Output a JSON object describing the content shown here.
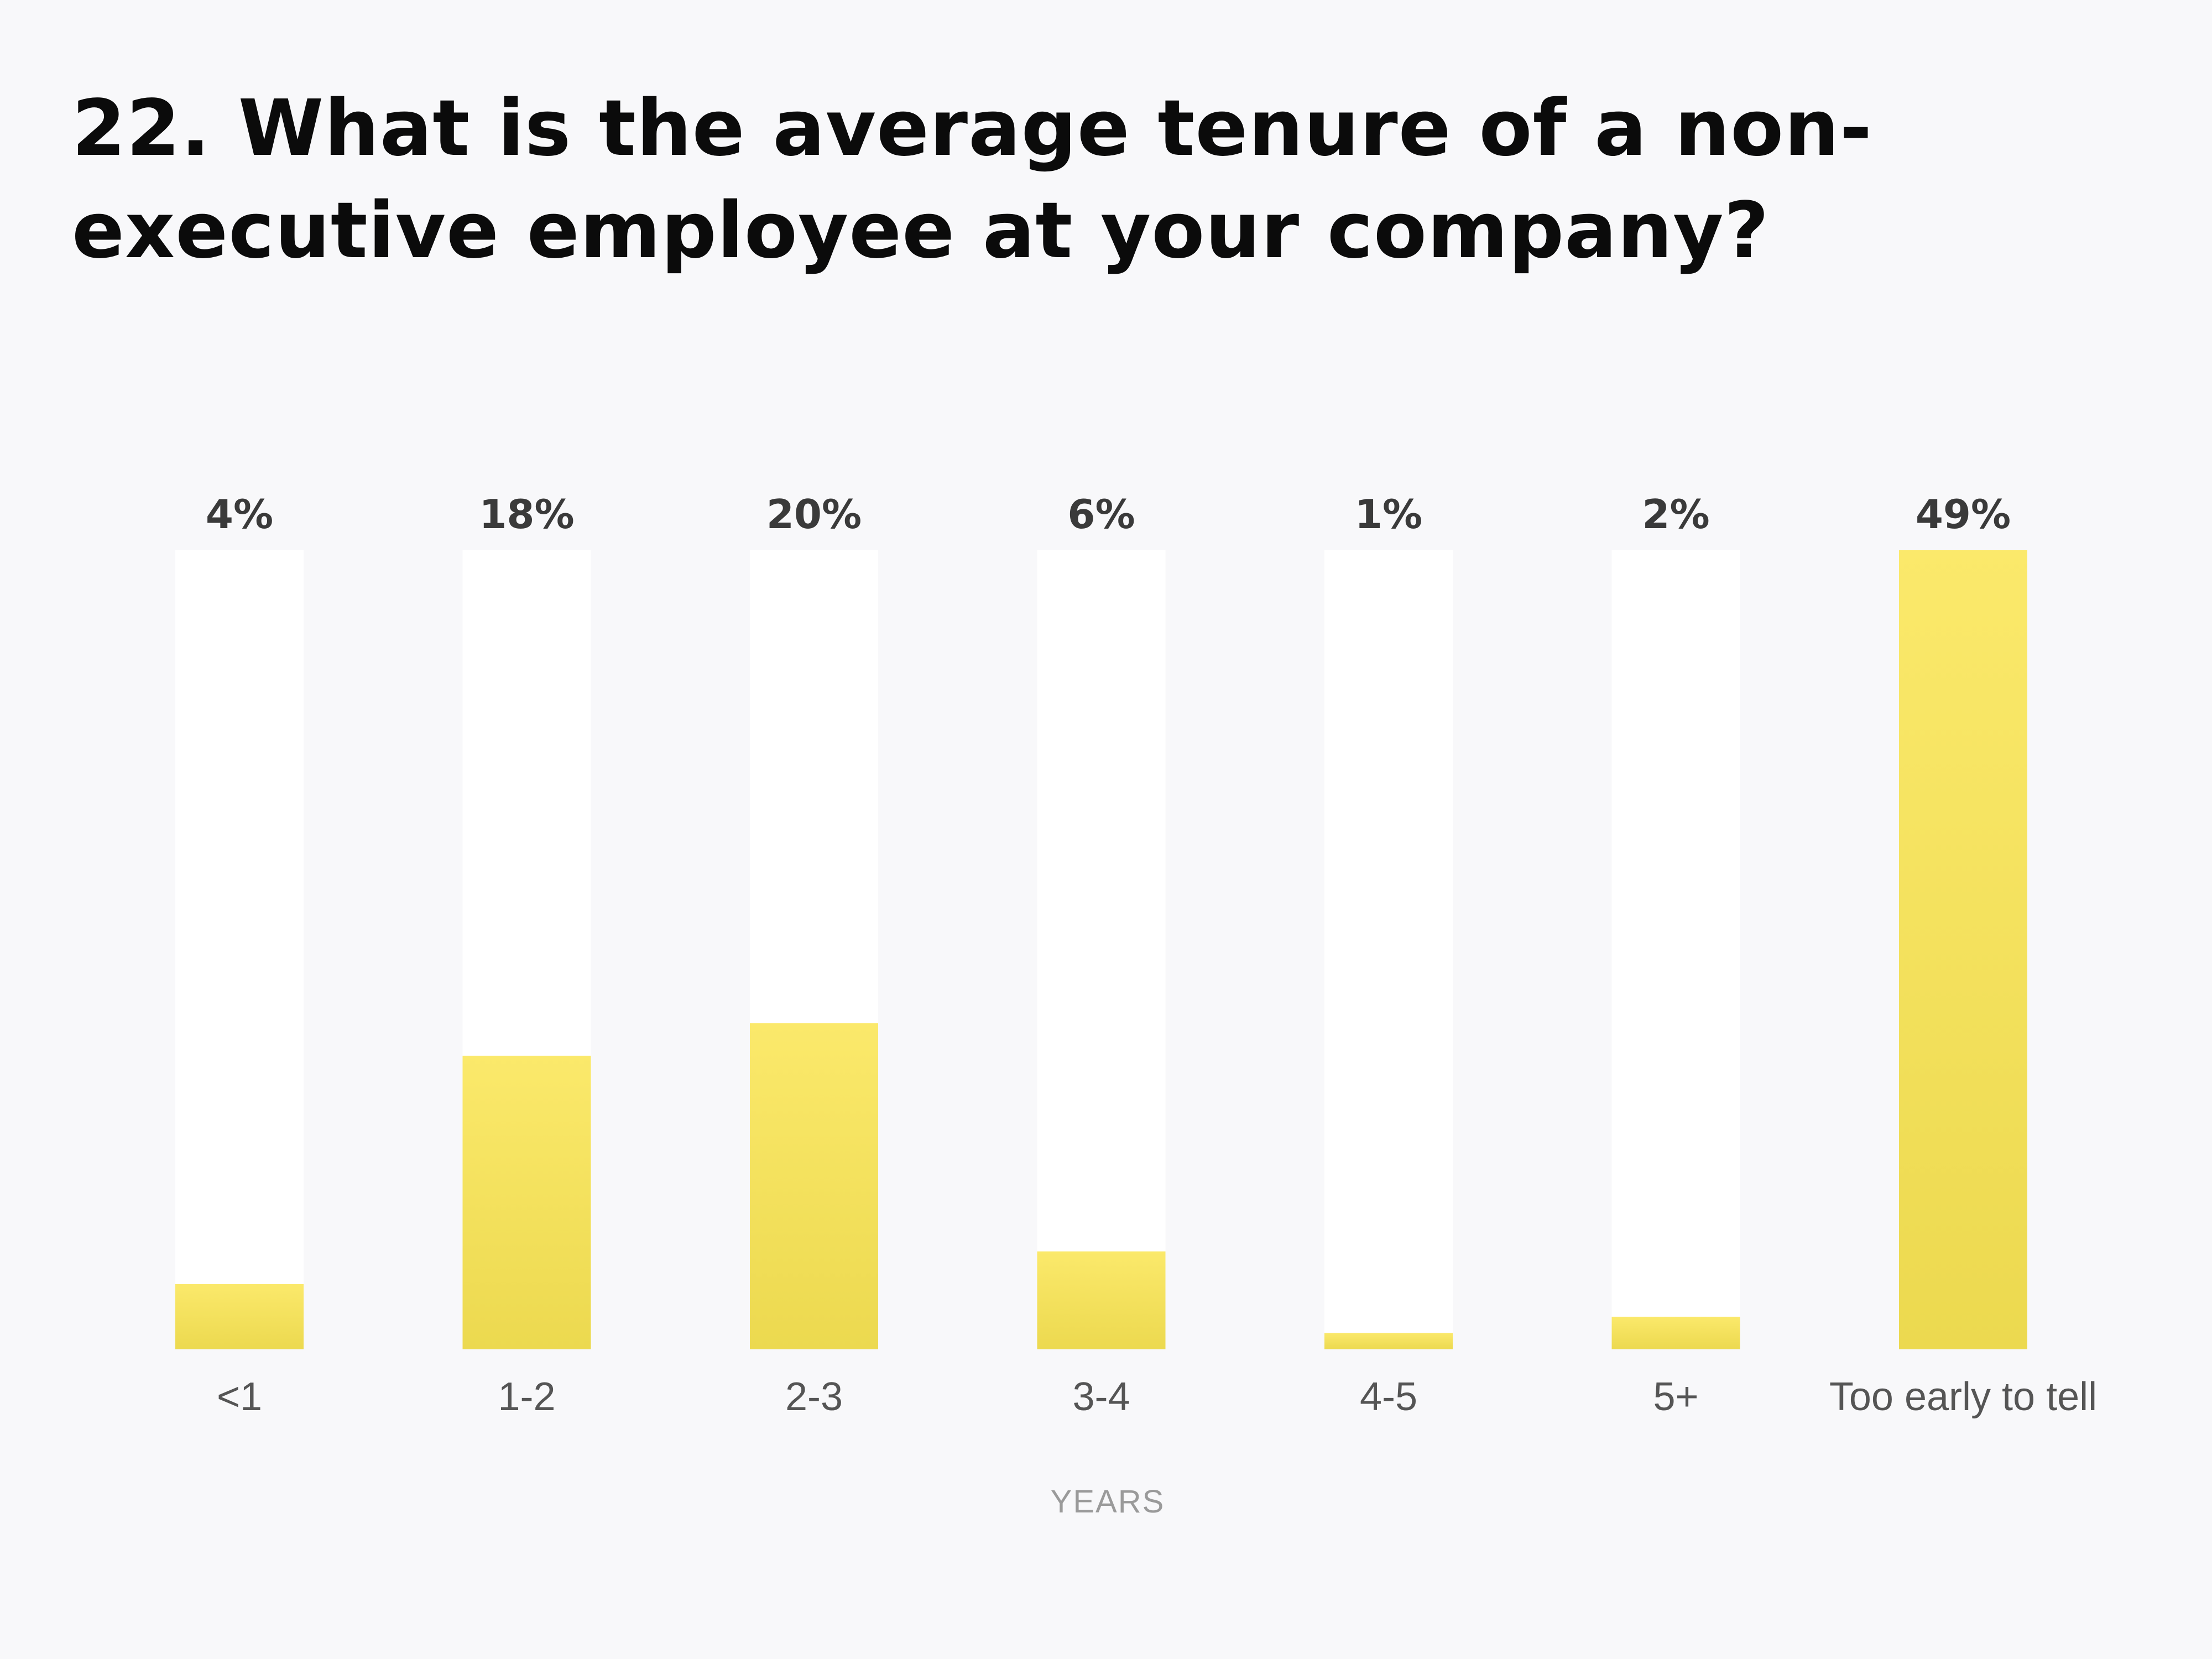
{
  "chart_data": {
    "type": "bar",
    "title": "22. What is the average tenure of a non-executive employee at your company?",
    "categories": [
      "<1",
      "1-2",
      "2-3",
      "3-4",
      "4-5",
      "5+",
      "Too early to tell"
    ],
    "values": [
      4,
      18,
      20,
      6,
      1,
      2,
      49
    ],
    "value_labels": [
      "4%",
      "18%",
      "20%",
      "6%",
      "1%",
      "2%",
      "49%"
    ],
    "xlabel": "YEARS",
    "ylabel": "",
    "ylim": [
      0,
      49
    ],
    "grid": false,
    "legend": "none",
    "colors": {
      "bar_top": "#fbe96b",
      "bar_bottom": "#ecd94f",
      "track": "#ffffff",
      "background": "#f8f8fa"
    }
  }
}
